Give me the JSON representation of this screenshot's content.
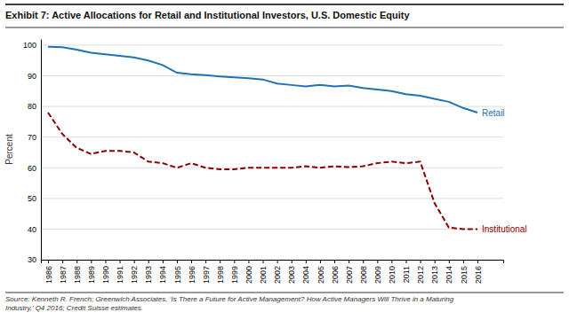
{
  "chart_data": {
    "type": "line",
    "title": "Exhibit 7: Active Allocations for Retail and Institutional Investors, U.S. Domestic Equity",
    "ylabel": "Percent",
    "annotations": [
      "Source: Kenneth R. French; Greenwich Associates, ‘Is There a Future for Active Management? How Active Managers Will Thrive in a Maturing\nIndustry,’ Q4 2016; Credit Suisse estimates."
    ],
    "x": [
      1986,
      1987,
      1988,
      1989,
      1990,
      1991,
      1992,
      1993,
      1994,
      1995,
      1996,
      1997,
      1998,
      1999,
      2000,
      2001,
      2002,
      2003,
      2004,
      2005,
      2006,
      2007,
      2008,
      2009,
      2010,
      2011,
      2012,
      2013,
      2014,
      2015,
      2016
    ],
    "series": [
      {
        "name": "Retail",
        "color": "#2171B5",
        "line_style": "solid",
        "values": [
          99.5,
          99.3,
          98.5,
          97.5,
          97.0,
          96.5,
          96.0,
          95.0,
          93.5,
          91.0,
          90.5,
          90.2,
          89.8,
          89.5,
          89.2,
          88.8,
          87.5,
          87.0,
          86.5,
          87.0,
          86.5,
          86.8,
          86.0,
          85.5,
          85.0,
          84.0,
          83.5,
          82.5,
          81.5,
          79.5,
          78.0
        ]
      },
      {
        "name": "Institutional",
        "color": "#8B0000",
        "line_style": "dashed",
        "values": [
          78.0,
          71.0,
          66.5,
          64.5,
          65.5,
          65.5,
          65.0,
          62.0,
          61.5,
          60.0,
          61.5,
          60.0,
          59.5,
          59.5,
          60.0,
          60.0,
          60.0,
          60.0,
          60.5,
          60.0,
          60.5,
          60.2,
          60.5,
          61.5,
          62.0,
          61.5,
          62.0,
          48.5,
          40.5,
          40.0,
          40.0
        ]
      }
    ],
    "xlim": [
      1985.5,
      2017.8
    ],
    "xticks": [
      1986,
      1987,
      1988,
      1989,
      1990,
      1991,
      1992,
      1993,
      1994,
      1995,
      1996,
      1997,
      1998,
      1999,
      2000,
      2001,
      2002,
      2003,
      2004,
      2005,
      2006,
      2007,
      2008,
      2009,
      2010,
      2011,
      2012,
      2013,
      2014,
      2015,
      2016
    ],
    "ylim": [
      30,
      102
    ],
    "yticks": [
      30,
      40,
      50,
      60,
      70,
      80,
      90,
      100
    ],
    "grid": true
  }
}
